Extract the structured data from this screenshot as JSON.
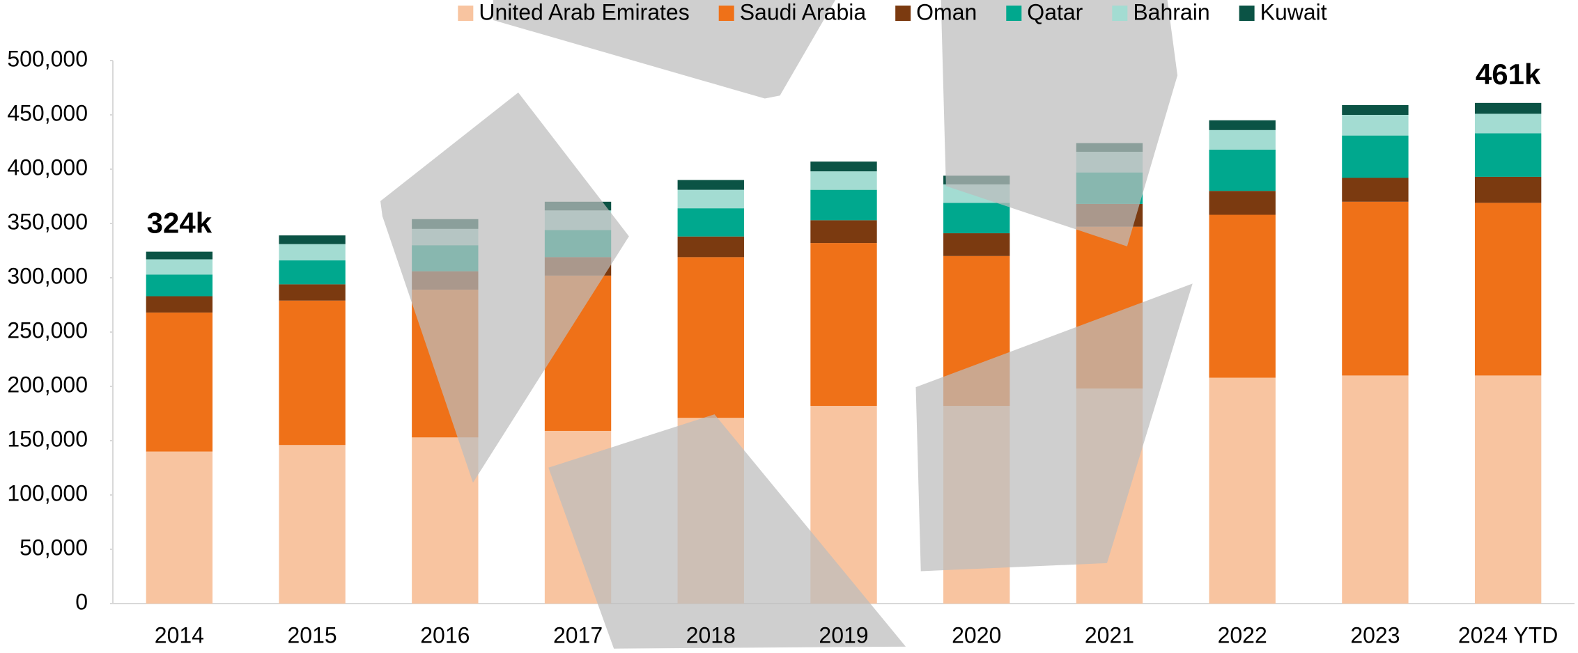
{
  "chart_data": {
    "type": "stacked_bar",
    "categories": [
      "2014",
      "2015",
      "2016",
      "2017",
      "2018",
      "2019",
      "2020",
      "2021",
      "2022",
      "2023",
      "2024 YTD"
    ],
    "series": [
      {
        "name": "United Arab Emirates",
        "color": "#f8c4a0",
        "values": [
          140000,
          146000,
          153000,
          159000,
          171000,
          182000,
          182000,
          198000,
          208000,
          210000,
          210000
        ]
      },
      {
        "name": "Saudi Arabia",
        "color": "#ef7118",
        "values": [
          128000,
          133000,
          136000,
          143000,
          148000,
          150000,
          138000,
          149000,
          150000,
          160000,
          159000
        ]
      },
      {
        "name": "Oman",
        "color": "#7b3a10",
        "values": [
          15000,
          15000,
          17000,
          17000,
          19000,
          21000,
          21000,
          21000,
          22000,
          22000,
          24000
        ]
      },
      {
        "name": "Qatar",
        "color": "#00a88e",
        "values": [
          20000,
          22000,
          24000,
          25000,
          26000,
          28000,
          28000,
          29000,
          38000,
          39000,
          40000
        ]
      },
      {
        "name": "Bahrain",
        "color": "#a3dcd2",
        "values": [
          14000,
          15000,
          15000,
          18000,
          17000,
          17000,
          17000,
          19000,
          18000,
          19000,
          18000
        ]
      },
      {
        "name": "Kuwait",
        "color": "#0b5345",
        "values": [
          7000,
          8000,
          9000,
          8000,
          9000,
          9000,
          8000,
          8000,
          9000,
          9000,
          10000
        ]
      }
    ],
    "ylim": [
      0,
      500000
    ],
    "yticks": [
      0,
      {
        "value": 50000,
        "label": "50,000"
      },
      {
        "value": 100000,
        "label": "100,000"
      },
      {
        "value": 150000,
        "label": "150,000"
      },
      {
        "value": 200000,
        "label": "200,000"
      },
      {
        "value": 250000,
        "label": "250,000"
      },
      {
        "value": 300000,
        "label": "300,000"
      },
      {
        "value": 350000,
        "label": "350,000"
      },
      {
        "value": 400000,
        "label": "400,000"
      },
      {
        "value": 450000,
        "label": "450,000"
      },
      {
        "value": 500000,
        "label": "500,000"
      }
    ],
    "annotations": [
      {
        "text": "324k",
        "x": "2014"
      },
      {
        "text": "461k",
        "x": "2024 YTD"
      }
    ],
    "legend": "top",
    "grid": false
  }
}
